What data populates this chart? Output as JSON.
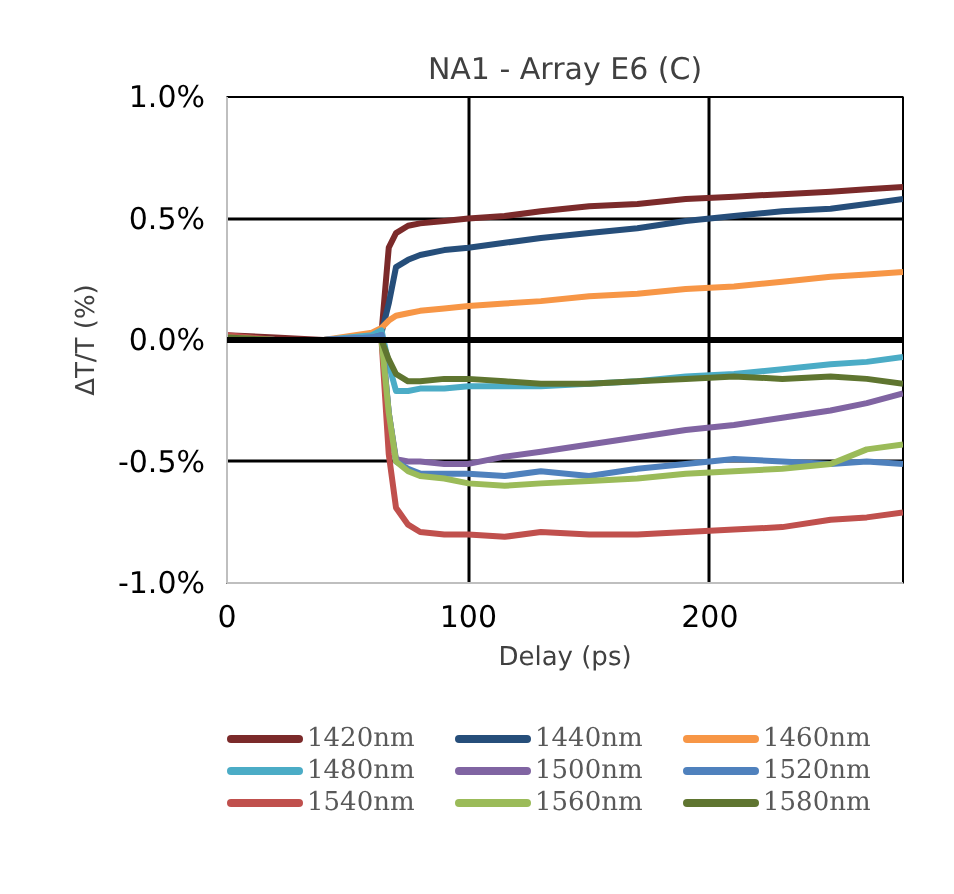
{
  "chart_data": {
    "type": "line",
    "title": "NA1 - Array E6 (C)",
    "xlabel": "Delay (ps)",
    "ylabel": "ΔT/T (%)",
    "x": [
      0,
      20,
      40,
      60,
      64,
      67,
      70,
      75,
      80,
      90,
      100,
      115,
      130,
      150,
      170,
      190,
      210,
      230,
      250,
      265,
      280
    ],
    "series": [
      {
        "name": "1420nm",
        "color": "#7b2a2a",
        "values": [
          0.02,
          0.01,
          0.0,
          0.01,
          0.03,
          0.38,
          0.44,
          0.47,
          0.48,
          0.49,
          0.5,
          0.51,
          0.53,
          0.55,
          0.56,
          0.58,
          0.59,
          0.6,
          0.61,
          0.62,
          0.63
        ]
      },
      {
        "name": "1440nm",
        "color": "#264e7a",
        "values": [
          0.01,
          0.0,
          0.0,
          0.01,
          0.03,
          0.15,
          0.3,
          0.33,
          0.35,
          0.37,
          0.38,
          0.4,
          0.42,
          0.44,
          0.46,
          0.49,
          0.51,
          0.53,
          0.54,
          0.56,
          0.58
        ]
      },
      {
        "name": "1460nm",
        "color": "#f79646",
        "values": [
          0.01,
          0.0,
          0.0,
          0.03,
          0.05,
          0.08,
          0.1,
          0.11,
          0.12,
          0.13,
          0.14,
          0.15,
          0.16,
          0.18,
          0.19,
          0.21,
          0.22,
          0.24,
          0.26,
          0.27,
          0.28
        ]
      },
      {
        "name": "1480nm",
        "color": "#4bacc6",
        "values": [
          0.01,
          0.0,
          0.0,
          0.02,
          0.04,
          -0.1,
          -0.21,
          -0.21,
          -0.2,
          -0.2,
          -0.19,
          -0.19,
          -0.19,
          -0.18,
          -0.17,
          -0.15,
          -0.14,
          -0.12,
          -0.1,
          -0.09,
          -0.07
        ]
      },
      {
        "name": "1500nm",
        "color": "#8064a2",
        "values": [
          0.01,
          0.0,
          0.0,
          0.01,
          0.02,
          -0.3,
          -0.49,
          -0.5,
          -0.5,
          -0.51,
          -0.51,
          -0.48,
          -0.46,
          -0.43,
          -0.4,
          -0.37,
          -0.35,
          -0.32,
          -0.29,
          -0.26,
          -0.22
        ]
      },
      {
        "name": "1520nm",
        "color": "#4f81bd",
        "values": [
          0.01,
          0.0,
          0.0,
          0.01,
          0.02,
          -0.3,
          -0.5,
          -0.53,
          -0.55,
          -0.55,
          -0.55,
          -0.56,
          -0.54,
          -0.56,
          -0.53,
          -0.51,
          -0.49,
          -0.5,
          -0.51,
          -0.5,
          -0.51
        ]
      },
      {
        "name": "1540nm",
        "color": "#c0504d",
        "values": [
          0.02,
          0.0,
          0.0,
          0.0,
          0.0,
          -0.47,
          -0.69,
          -0.76,
          -0.79,
          -0.8,
          -0.8,
          -0.81,
          -0.79,
          -0.8,
          -0.8,
          -0.79,
          -0.78,
          -0.77,
          -0.74,
          -0.73,
          -0.71
        ]
      },
      {
        "name": "1560nm",
        "color": "#9bbb59",
        "values": [
          0.01,
          0.0,
          0.0,
          0.0,
          0.0,
          -0.3,
          -0.5,
          -0.54,
          -0.56,
          -0.57,
          -0.59,
          -0.6,
          -0.59,
          -0.58,
          -0.57,
          -0.55,
          -0.54,
          -0.53,
          -0.51,
          -0.45,
          -0.43
        ]
      },
      {
        "name": "1580nm",
        "color": "#5f7530",
        "values": [
          0.01,
          0.0,
          0.0,
          0.0,
          0.0,
          -0.08,
          -0.14,
          -0.17,
          -0.17,
          -0.16,
          -0.16,
          -0.17,
          -0.18,
          -0.18,
          -0.17,
          -0.16,
          -0.15,
          -0.16,
          -0.15,
          -0.16,
          -0.18
        ]
      }
    ],
    "xlim": [
      0,
      280
    ],
    "xticks": [
      0,
      100,
      200
    ],
    "ylim": [
      -1,
      1
    ],
    "yticks": [
      {
        "value": -1,
        "label": "-1.0%"
      },
      {
        "value": -0.5,
        "label": "-0.5%"
      },
      {
        "value": 0,
        "label": "0.0%"
      },
      {
        "value": 0.5,
        "label": "0.5%"
      },
      {
        "value": 1,
        "label": "1.0%"
      }
    ],
    "ref_lines": [
      {
        "axis": "y",
        "value": 0,
        "color": "#000000"
      }
    ],
    "grid": true,
    "legend": "bottom",
    "marker": "none",
    "line_style": "solid"
  }
}
